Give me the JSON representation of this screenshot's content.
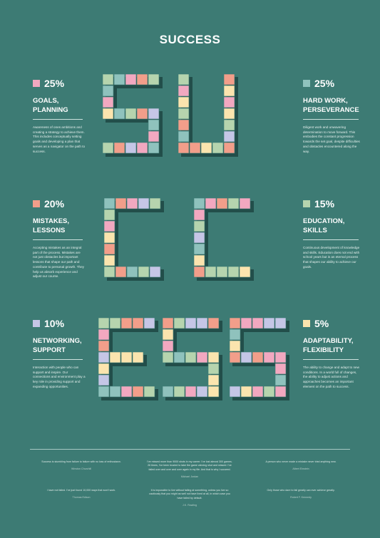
{
  "title": "SUCCESS",
  "palette": {
    "background": "#3d7b74",
    "pink": "#f2a8c0",
    "salmon": "#f29e8a",
    "mint": "#b6d4ae",
    "teal": "#8fc2bd",
    "lavender": "#c5c6e6",
    "cream": "#fbe4ae",
    "shadow": "#224e4a"
  },
  "stats": [
    {
      "percent": "25%",
      "label_line1": "GOALS,",
      "label_line2": "PLANNING",
      "swatch": "#f2a8c0",
      "description": "Awareness of ones ambitions and creating a strategy to achieve them. This includes conceptually setting goals and developing a plan that serves as a navigator on the path to success."
    },
    {
      "percent": "20%",
      "label_line1": "MISTAKES,",
      "label_line2": "LESSONS",
      "swatch": "#f29e8a",
      "description": "Accepting mistakes as an integral part of the process. Mistakes are not just obstacles but important lessons that shape our path and contribute to personal growth. They help us absorb experience and adjust our course."
    },
    {
      "percent": "10%",
      "label_line1": "NETWORKING,",
      "label_line2": "SUPPORT",
      "swatch": "#c5c6e6",
      "description": "Interaction with people who can support and inspire. Our connections and environment play a key role in providing support and expanding opportunities."
    },
    {
      "percent": "25%",
      "label_line1": "HARD WORK,",
      "label_line2": "PERSEVERANCE",
      "swatch": "#8fc2bd",
      "description": "Diligent work and unwavering determination to move forward. This embodies the constant progression towards the set goal, despite difficulties and obstacles encountered along the way."
    },
    {
      "percent": "15%",
      "label_line1": "EDUCATION,",
      "label_line2": "SKILLS",
      "swatch": "#b6d4ae",
      "description": "Continuous development of knowledge and skills. Education does not end with school years but is an eternal process that shapes our ability to achieve our goals."
    },
    {
      "percent": "5%",
      "label_line1": "ADAPTABILITY,",
      "label_line2": "FLEXIBILITY",
      "swatch": "#fbe4ae",
      "description": "The ability to change and adapt to new conditions. In a world full of changes, the ability to adjust actions and approaches becomes an important element on the path to success."
    }
  ],
  "quotes": [
    {
      "text": "Success is stumbling from failure to failure with no loss of enthusiasm.",
      "author": "Winston Churchill"
    },
    {
      "text": "I've missed more than 9000 shots in my career. I've lost almost 300 games. 26 times, I've been trusted to take the game winning shot and missed. I've failed over and over and over again in my life. And that is why I succeed.",
      "author": "Michael Jordan"
    },
    {
      "text": "A person who never made a mistake never tried anything new.",
      "author": "Albert Einstein"
    },
    {
      "text": "I have not failed. I've just found 10,000 ways that won't work.",
      "author": "Thomas Edison"
    },
    {
      "text": "It is impossible to live without failing at something, unless you live so cautiously that you might as well not have lived at all, in which case you have failed by default.",
      "author": "J.K. Rowling"
    },
    {
      "text": "Only those who dare to fail greatly can ever achieve greatly.",
      "author": "Robert F. Kennedy"
    }
  ]
}
